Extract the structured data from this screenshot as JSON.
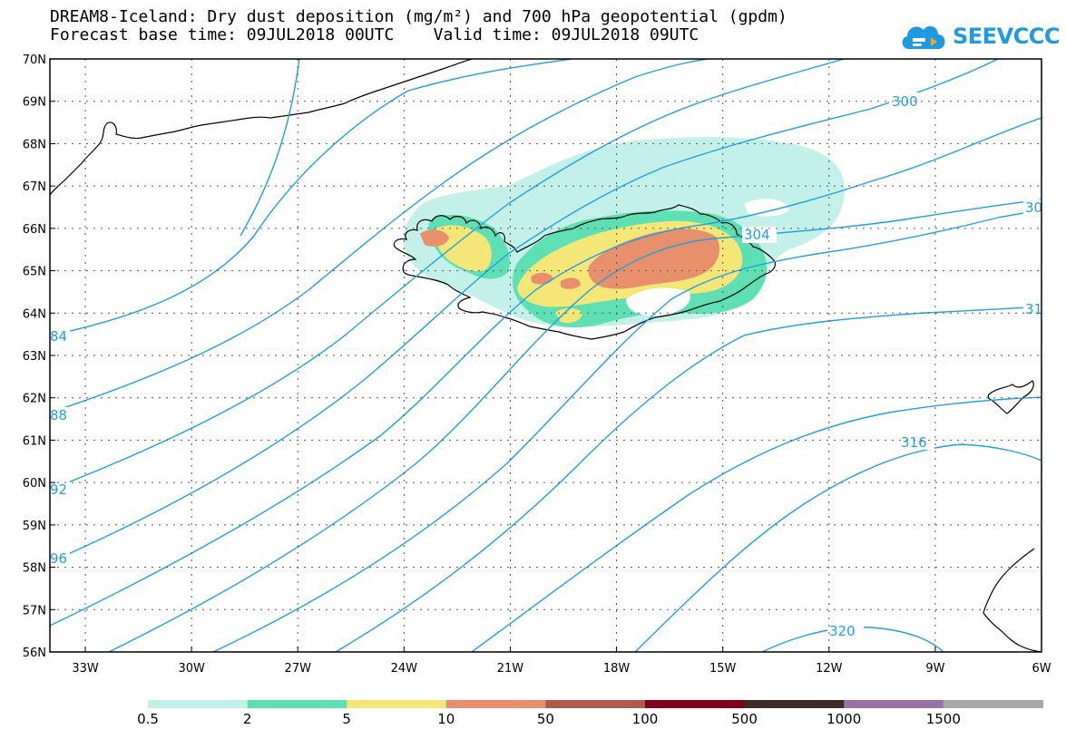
{
  "title": {
    "line1": "DREAM8-Iceland: Dry dust deposition (mg/m²) and 700 hPa geopotential (gpdm)",
    "line2": "Forecast base time: 09JUL2018 00UTC    Valid time: 09JUL2018 09UTC"
  },
  "logo": {
    "text": "SEEVCCC",
    "icon": "cloud-logo-icon"
  },
  "map": {
    "type": "contour-map",
    "region": "Iceland",
    "lon_range": [
      -34,
      -6
    ],
    "lat_range": [
      56,
      70
    ],
    "grid": true,
    "lon_ticks": [
      "33W",
      "30W",
      "27W",
      "24W",
      "21W",
      "18W",
      "15W",
      "12W",
      "9W",
      "6W"
    ],
    "lat_ticks": [
      "70N",
      "69N",
      "68N",
      "67N",
      "66N",
      "65N",
      "64N",
      "63N",
      "62N",
      "61N",
      "60N",
      "59N",
      "58N",
      "57N",
      "56N"
    ],
    "contour_color": "#1ea0e0",
    "contour_labels": [
      "300",
      "304",
      "31",
      "316",
      "320",
      "30",
      "84",
      "88",
      "92",
      "96"
    ]
  },
  "legend": {
    "colors": [
      "#c4f0ea",
      "#5ee0b4",
      "#f5e678",
      "#e8906c",
      "#b05a4c",
      "#800020",
      "#3c2a24",
      "#9a72a8",
      "#a8a8a8"
    ],
    "labels": [
      "0.5",
      "2",
      "5",
      "10",
      "50",
      "100",
      "500",
      "1000",
      "1500"
    ]
  },
  "chart_data": {
    "type": "heatmap",
    "title": "DREAM8-Iceland: Dry dust deposition (mg/m²) and 700 hPa geopotential (gpdm)",
    "xlim": [
      -34,
      -6
    ],
    "ylim": [
      56,
      70
    ],
    "color_bins": [
      0.5,
      2,
      5,
      10,
      50,
      100,
      500,
      1000,
      1500
    ],
    "contour_levels_labeled": [
      300,
      304,
      316,
      320
    ]
  }
}
